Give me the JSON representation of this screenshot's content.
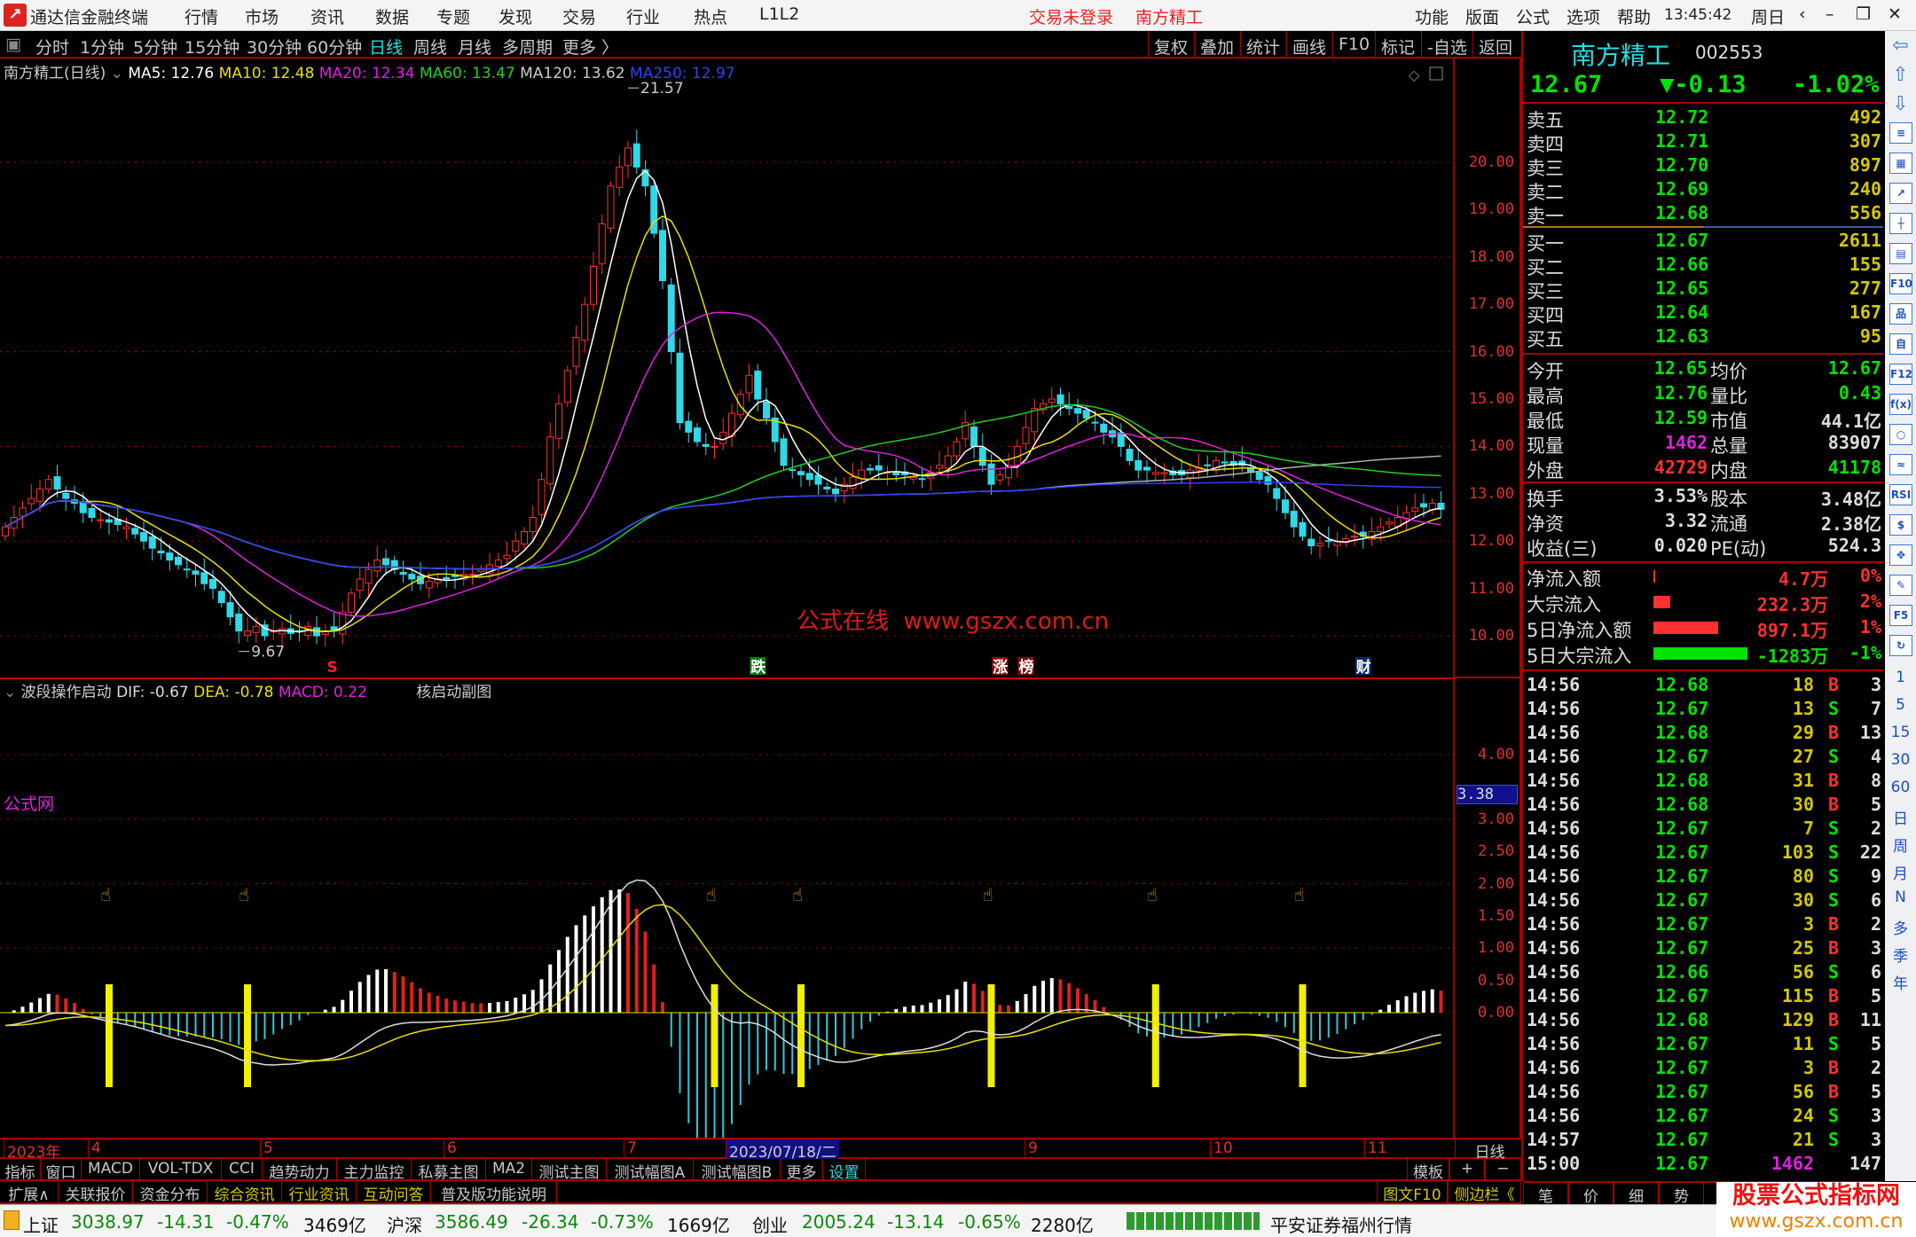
{
  "app": {
    "title": "通达信金融终端",
    "menus": [
      "行情",
      "市场",
      "资讯",
      "数据",
      "专题",
      "发现",
      "交易",
      "行业",
      "热点",
      "L1L2"
    ],
    "login_status": "交易未登录",
    "stock_title": "南方精工",
    "right_menus": [
      "功能",
      "版面",
      "公式",
      "选项",
      "帮助"
    ],
    "clock": "13:45:42",
    "weekday": "周日"
  },
  "periods": [
    "分时",
    "1分钟",
    "5分钟",
    "15分钟",
    "30分钟",
    "60分钟",
    "日线",
    "周线",
    "月线",
    "多周期",
    "更多 〉"
  ],
  "active_period": "日线",
  "tools": [
    "复权",
    "叠加",
    "统计",
    "画线",
    "F10",
    "标记",
    "-自选",
    "返回"
  ],
  "ma_header": {
    "name": "南方精工(日线)",
    "ma5": "MA5: 12.76",
    "ma10": "MA10: 12.48",
    "ma20": "MA20: 12.34",
    "ma60": "MA60: 13.47",
    "ma120": "MA120: 13.62",
    "ma250": "MA250: 12.97"
  },
  "indicator_header": {
    "name": "波段操作启动",
    "dif": "DIF: -0.67",
    "dea": "DEA: -0.78",
    "macd": "MACD: 0.22",
    "sub": "核启动副图"
  },
  "chart_data": {
    "type": "candlestick",
    "closes": [
      12.3,
      12.5,
      12.7,
      12.9,
      13.1,
      13.3,
      13.1,
      12.9,
      12.8,
      12.6,
      12.5,
      12.45,
      12.4,
      12.35,
      12.3,
      12.15,
      12.0,
      11.85,
      11.75,
      11.6,
      11.5,
      11.4,
      11.3,
      11.1,
      11.0,
      10.7,
      10.4,
      10.1,
      10.1,
      10.2,
      10.0,
      10.1,
      10.15,
      10.05,
      10.1,
      10.2,
      10.0,
      10.1,
      10.1,
      10.5,
      10.9,
      11.2,
      11.4,
      11.6,
      11.5,
      11.4,
      11.3,
      11.2,
      11.1,
      11.15,
      11.2,
      11.2,
      11.25,
      11.3,
      11.3,
      11.4,
      11.5,
      11.6,
      11.7,
      12.0,
      12.2,
      12.5,
      13.3,
      14.2,
      14.9,
      15.6,
      16.3,
      17.0,
      17.8,
      18.7,
      19.5,
      19.9,
      20.3,
      19.9,
      19.5,
      18.5,
      17.5,
      16.0,
      14.5,
      14.3,
      14.1,
      14.0,
      14.0,
      14.3,
      14.7,
      15.1,
      15.5,
      15.0,
      14.6,
      14.1,
      13.6,
      13.5,
      13.4,
      13.3,
      13.2,
      13.1,
      13.0,
      13.2,
      13.35,
      13.5,
      13.5,
      13.5,
      13.45,
      13.4,
      13.4,
      13.35,
      13.3,
      13.45,
      13.6,
      13.8,
      14.1,
      14.5,
      14.0,
      13.6,
      13.2,
      13.4,
      13.6,
      14.0,
      14.4,
      14.8,
      14.9,
      15.0,
      14.9,
      14.8,
      14.7,
      14.6,
      14.5,
      14.3,
      14.2,
      14.0,
      13.7,
      13.5,
      13.5,
      13.45,
      13.45,
      13.4,
      13.4,
      13.5,
      13.55,
      13.6,
      13.7,
      13.65,
      13.6,
      13.6,
      13.45,
      13.3,
      13.2,
      12.9,
      12.6,
      12.3,
      12.1,
      11.9,
      11.95,
      12.0,
      12.0,
      12.05,
      12.1,
      12.1,
      12.2,
      12.3,
      12.4,
      12.5,
      12.6,
      12.7,
      12.72,
      12.8,
      12.67
    ],
    "price_ticks": [
      "20.00",
      "19.00",
      "18.00",
      "17.00",
      "16.00",
      "15.00",
      "14.00",
      "13.00",
      "12.00",
      "11.00",
      "10.00"
    ],
    "indicator_ticks": [
      "4.00",
      "3.00",
      "2.50",
      "2.00",
      "1.50",
      "1.00",
      "0.50",
      "0.00"
    ],
    "indicator_current": "3.38",
    "high_label": "21.57",
    "low_label": "9.67",
    "signal_bars": [
      12,
      28,
      82,
      92,
      114,
      133,
      150
    ],
    "events": [
      {
        "text": "S",
        "bar": 38,
        "color": "#ff2020"
      },
      {
        "text": "跌",
        "bar": 87,
        "color": "#20c020"
      },
      {
        "text": "涨",
        "bar": 115,
        "color": "#ff2020"
      },
      {
        "text": "榜",
        "bar": 118,
        "color": "#ff2020"
      },
      {
        "text": "财",
        "bar": 157,
        "color": "#4080ff"
      }
    ],
    "ma_colors": {
      "ma5": "#ffffff",
      "ma10": "#e8e000",
      "ma20": "#e020e0",
      "ma60": "#20d020",
      "ma120": "#b0b0b0",
      "ma250": "#3040ff"
    },
    "up_color": "#ff3030",
    "down_color": "#30d8e8"
  },
  "watermark": "公式在线  www.gszx.com.cn",
  "indicator_mark": "公式网",
  "date_axis": {
    "labels": [
      "2023年",
      "4",
      "5",
      "6",
      "7",
      "9",
      "10",
      "11"
    ],
    "selected": "2023/07/18/二",
    "period": "日线"
  },
  "indicator_tabs": [
    "指标",
    "窗口",
    "MACD",
    "VOL-TDX",
    "CCI",
    "趋势动力",
    "主力监控",
    "私募主图",
    "MA2",
    "测试主图",
    "测试幅图A",
    "测试幅图B",
    "更多",
    "设置"
  ],
  "template_tabs": [
    "模板",
    "+",
    "−"
  ],
  "ext_tabs": [
    "扩展∧",
    "关联报价",
    "资金分布",
    "综合资讯",
    "行业资讯",
    "互动问答",
    "普及版功能说明"
  ],
  "ext_right": [
    "图文F10",
    "侧边栏《"
  ],
  "quote": {
    "name": "南方精工",
    "code": "002553",
    "price": "12.67",
    "change": "▼-0.13",
    "pct": "-1.02%",
    "asks": [
      {
        "label": "卖五",
        "price": "12.72",
        "vol": "492"
      },
      {
        "label": "卖四",
        "price": "12.71",
        "vol": "307"
      },
      {
        "label": "卖三",
        "price": "12.70",
        "vol": "897"
      },
      {
        "label": "卖二",
        "price": "12.69",
        "vol": "240"
      },
      {
        "label": "卖一",
        "price": "12.68",
        "vol": "556"
      }
    ],
    "bids": [
      {
        "label": "买一",
        "price": "12.67",
        "vol": "2611"
      },
      {
        "label": "买二",
        "price": "12.66",
        "vol": "155"
      },
      {
        "label": "买三",
        "price": "12.65",
        "vol": "277"
      },
      {
        "label": "买四",
        "price": "12.64",
        "vol": "167"
      },
      {
        "label": "买五",
        "price": "12.63",
        "vol": "95"
      }
    ],
    "stats": [
      {
        "l1": "今开",
        "v1": "12.65",
        "c1": "g",
        "l2": "均价",
        "v2": "12.67",
        "c2": "g"
      },
      {
        "l1": "最高",
        "v1": "12.76",
        "c1": "g",
        "l2": "量比",
        "v2": "0.43",
        "c2": "g"
      },
      {
        "l1": "最低",
        "v1": "12.59",
        "c1": "g",
        "l2": "市值",
        "v2": "44.1亿",
        "c2": "w"
      },
      {
        "l1": "现量",
        "v1": "1462",
        "c1": "m",
        "l2": "总量",
        "v2": "83907",
        "c2": "w"
      },
      {
        "l1": "外盘",
        "v1": "42729",
        "c1": "rd",
        "l2": "内盘",
        "v2": "41178",
        "c2": "g"
      }
    ],
    "stats2": [
      {
        "l1": "换手",
        "v1": "3.53%",
        "l2": "股本",
        "v2": "3.48亿"
      },
      {
        "l1": "净资",
        "v1": "3.32",
        "l2": "流通",
        "v2": "2.38亿"
      },
      {
        "l1": "收益(三)",
        "v1": "0.020",
        "l2": "PE(动)",
        "v2": "524.3"
      }
    ],
    "flows": [
      {
        "label": "净流入额",
        "value": "4.7万",
        "pct": "0%",
        "bar": 0.01,
        "color": "#ff3030"
      },
      {
        "label": "大宗流入",
        "value": "232.3万",
        "pct": "2%",
        "bar": 0.18,
        "color": "#ff3030"
      },
      {
        "label": "5日净流入额",
        "value": "897.1万",
        "pct": "1%",
        "bar": 0.69,
        "color": "#ff3030"
      },
      {
        "label": "5日大宗流入",
        "value": "-1283万",
        "pct": "-1%",
        "bar": 1.0,
        "color": "#00e400"
      }
    ]
  },
  "trades": [
    [
      "14:56",
      "12.68",
      "18",
      "B",
      "3"
    ],
    [
      "14:56",
      "12.67",
      "13",
      "S",
      "7"
    ],
    [
      "14:56",
      "12.68",
      "29",
      "B",
      "13"
    ],
    [
      "14:56",
      "12.67",
      "27",
      "S",
      "4"
    ],
    [
      "14:56",
      "12.68",
      "31",
      "B",
      "8"
    ],
    [
      "14:56",
      "12.68",
      "30",
      "B",
      "5"
    ],
    [
      "14:56",
      "12.67",
      "7",
      "S",
      "2"
    ],
    [
      "14:56",
      "12.67",
      "103",
      "S",
      "22"
    ],
    [
      "14:56",
      "12.67",
      "80",
      "S",
      "9"
    ],
    [
      "14:56",
      "12.67",
      "30",
      "S",
      "6"
    ],
    [
      "14:56",
      "12.67",
      "3",
      "B",
      "2"
    ],
    [
      "14:56",
      "12.67",
      "25",
      "B",
      "3"
    ],
    [
      "14:56",
      "12.66",
      "56",
      "S",
      "6"
    ],
    [
      "14:56",
      "12.67",
      "115",
      "B",
      "5"
    ],
    [
      "14:56",
      "12.68",
      "129",
      "B",
      "11"
    ],
    [
      "14:56",
      "12.67",
      "11",
      "S",
      "5"
    ],
    [
      "14:56",
      "12.67",
      "3",
      "B",
      "2"
    ],
    [
      "14:56",
      "12.67",
      "56",
      "B",
      "5"
    ],
    [
      "14:56",
      "12.67",
      "24",
      "S",
      "3"
    ],
    [
      "14:57",
      "12.67",
      "21",
      "S",
      "3"
    ],
    [
      "15:00",
      "12.67",
      "1462",
      "",
      "147"
    ]
  ],
  "trade_tabs": [
    "笔",
    "价",
    "细",
    "势"
  ],
  "side_icons": {
    "top": [
      "⇦",
      "⇧",
      "⇩"
    ],
    "boxes": [
      "≡",
      "▦",
      "↗",
      "┼",
      "▤",
      "F10",
      "品",
      "自",
      "F12",
      "f(x)",
      "○",
      "≈",
      "RSI",
      "$",
      "✥",
      "✎",
      "F5",
      "↻"
    ],
    "periods": [
      "1",
      "5",
      "15",
      "30",
      "60",
      "日",
      "周",
      "月",
      "N",
      "多",
      "季",
      "年"
    ]
  },
  "status": {
    "sh": {
      "name": "上证",
      "val": "3038.97",
      "chg": "-14.31",
      "pct": "-0.47%",
      "amt": "3469亿"
    },
    "hs": {
      "name": "沪深",
      "val": "3586.49",
      "chg": "-26.34",
      "pct": "-0.73%",
      "amt": "1669亿"
    },
    "cy": {
      "name": "创业",
      "val": "2005.24",
      "chg": "-13.14",
      "pct": "-0.65%",
      "amt": "2280亿"
    },
    "broker": "平安证券福州行情"
  },
  "brand": {
    "line1": "股票公式指标网",
    "line2": "www.gszx.com.cn"
  }
}
